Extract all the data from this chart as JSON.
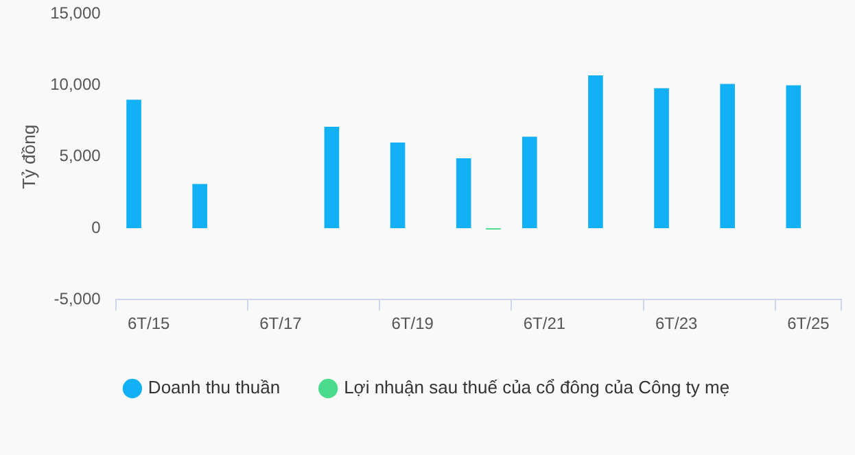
{
  "chart_data": {
    "type": "bar",
    "ylabel": "Tỷ đồng",
    "categories": [
      "6T/15",
      null,
      "6T/17",
      null,
      "6T/19",
      null,
      "6T/21",
      null,
      "6T/23",
      null,
      "6T/25"
    ],
    "series": [
      {
        "name": "Doanh thu thuần",
        "color": "#12b0f5",
        "values": [
          9000,
          3100,
          null,
          7100,
          6000,
          4900,
          6400,
          10700,
          9800,
          10100,
          10000
        ]
      },
      {
        "name": "Lợi nhuận sau thuế của cổ đông của Công ty mẹ",
        "color": "#4cdb8c",
        "values": [
          null,
          null,
          null,
          null,
          null,
          -100,
          null,
          0,
          null,
          null,
          null
        ]
      }
    ],
    "ylim": [
      -5000,
      15000
    ],
    "yticks": [
      {
        "value": -5000,
        "label": "-5,000"
      },
      0,
      {
        "value": 5000,
        "label": "5,000"
      },
      {
        "value": 10000,
        "label": "10,000"
      },
      {
        "value": 15000,
        "label": "15,000"
      }
    ],
    "grid": false,
    "legend": "bottom"
  }
}
